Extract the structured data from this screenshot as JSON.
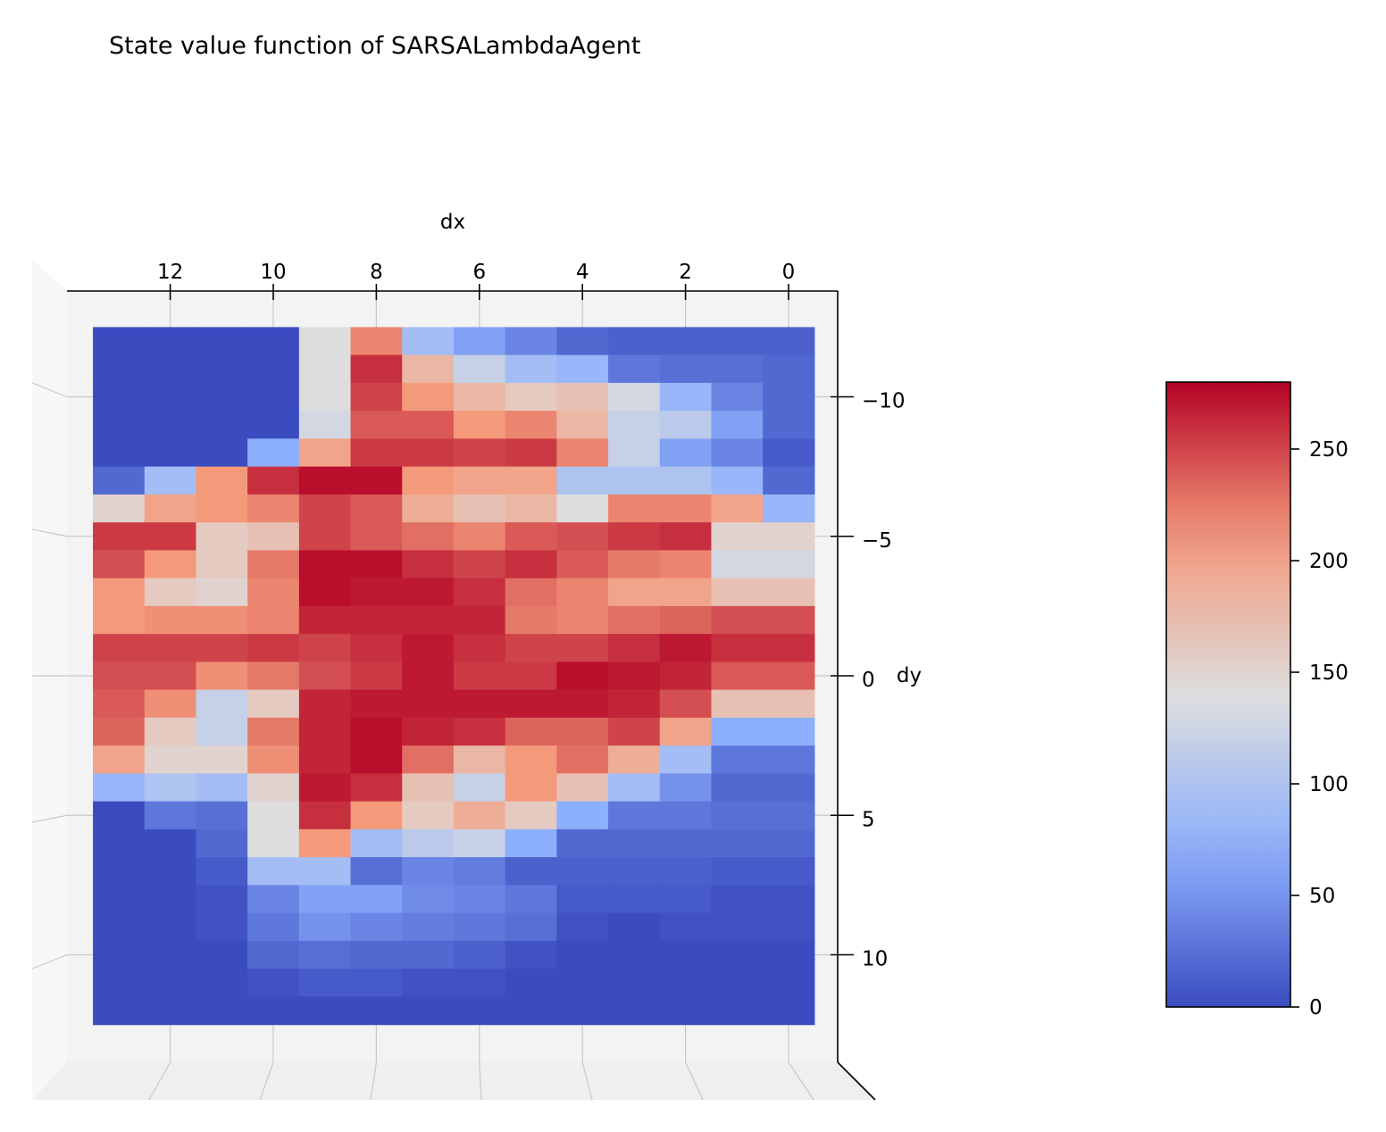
{
  "chart_data": {
    "type": "heatmap",
    "title": "State value function of SARSALambdaAgent",
    "xlabel": "dx",
    "ylabel": "dy",
    "x_axis_reversed": true,
    "xlim": [
      -1,
      14
    ],
    "ylim": [
      -14,
      14
    ],
    "x_ticks": [
      12,
      10,
      8,
      6,
      4,
      2,
      0
    ],
    "x_tick_labels": [
      "12",
      "10",
      "8",
      "6",
      "4",
      "2",
      "0"
    ],
    "y_ticks": [
      -10,
      -5,
      0,
      5,
      10
    ],
    "y_tick_labels": [
      "−10",
      "−5",
      "0",
      "5",
      "10"
    ],
    "colormap": "coolwarm",
    "colorbar": {
      "range": [
        0,
        280
      ],
      "ticks": [
        0,
        50,
        100,
        150,
        200,
        250
      ],
      "tick_labels": [
        "0",
        "50",
        "100",
        "150",
        "200",
        "250"
      ]
    },
    "x": [
      13,
      12,
      11,
      10,
      9,
      8,
      7,
      6,
      5,
      4,
      3,
      2,
      1,
      0
    ],
    "y": [
      -12,
      -11,
      -10,
      -9,
      -8,
      -7,
      -6,
      -5,
      -4,
      -3,
      -2,
      -1,
      0,
      1,
      2,
      3,
      4,
      5,
      6,
      7,
      8,
      9,
      10,
      11,
      12
    ],
    "grid": true,
    "values": [
      [
        0,
        0,
        0,
        0,
        140,
        220,
        90,
        60,
        40,
        20,
        15,
        15,
        15,
        15
      ],
      [
        0,
        0,
        0,
        0,
        140,
        260,
        180,
        120,
        90,
        80,
        30,
        25,
        25,
        20
      ],
      [
        0,
        0,
        0,
        0,
        140,
        250,
        210,
        180,
        160,
        170,
        130,
        80,
        40,
        20
      ],
      [
        0,
        0,
        0,
        0,
        130,
        240,
        240,
        210,
        220,
        180,
        120,
        110,
        60,
        20
      ],
      [
        0,
        0,
        0,
        70,
        200,
        255,
        255,
        250,
        255,
        220,
        120,
        60,
        40,
        10
      ],
      [
        20,
        90,
        210,
        260,
        275,
        275,
        210,
        200,
        200,
        100,
        100,
        100,
        80,
        20
      ],
      [
        150,
        200,
        210,
        220,
        250,
        240,
        190,
        170,
        180,
        140,
        220,
        220,
        200,
        80
      ],
      [
        255,
        255,
        160,
        170,
        250,
        240,
        230,
        220,
        240,
        245,
        255,
        260,
        150,
        150
      ],
      [
        245,
        210,
        160,
        225,
        275,
        275,
        260,
        250,
        260,
        240,
        225,
        220,
        130,
        130
      ],
      [
        210,
        160,
        150,
        220,
        275,
        270,
        270,
        260,
        230,
        220,
        200,
        200,
        170,
        170
      ],
      [
        210,
        215,
        215,
        220,
        265,
        265,
        265,
        265,
        225,
        220,
        230,
        235,
        245,
        245
      ],
      [
        250,
        250,
        250,
        255,
        250,
        260,
        270,
        260,
        250,
        250,
        260,
        270,
        260,
        260
      ],
      [
        245,
        245,
        215,
        225,
        245,
        255,
        270,
        255,
        255,
        275,
        270,
        265,
        240,
        240
      ],
      [
        240,
        215,
        120,
        160,
        265,
        270,
        270,
        270,
        270,
        270,
        265,
        245,
        170,
        170
      ],
      [
        235,
        160,
        120,
        225,
        265,
        275,
        265,
        260,
        235,
        235,
        250,
        200,
        70,
        70
      ],
      [
        200,
        150,
        150,
        215,
        265,
        275,
        230,
        180,
        210,
        230,
        190,
        90,
        30,
        30
      ],
      [
        80,
        100,
        90,
        150,
        270,
        260,
        170,
        120,
        210,
        170,
        90,
        50,
        20,
        20
      ],
      [
        0,
        30,
        25,
        140,
        260,
        210,
        160,
        190,
        160,
        70,
        30,
        30,
        25,
        25
      ],
      [
        0,
        0,
        20,
        140,
        210,
        90,
        110,
        120,
        70,
        20,
        20,
        20,
        20,
        20
      ],
      [
        0,
        0,
        10,
        90,
        90,
        25,
        40,
        35,
        15,
        15,
        15,
        15,
        10,
        10
      ],
      [
        0,
        0,
        5,
        40,
        60,
        60,
        45,
        40,
        30,
        10,
        10,
        10,
        5,
        5
      ],
      [
        0,
        0,
        5,
        30,
        50,
        40,
        35,
        30,
        25,
        5,
        0,
        5,
        5,
        5
      ],
      [
        0,
        0,
        0,
        20,
        25,
        20,
        20,
        15,
        5,
        0,
        0,
        0,
        0,
        0
      ],
      [
        0,
        0,
        0,
        5,
        10,
        10,
        5,
        5,
        0,
        0,
        0,
        0,
        0,
        0
      ],
      [
        0,
        0,
        0,
        0,
        0,
        0,
        0,
        0,
        0,
        0,
        0,
        0,
        0,
        0
      ]
    ]
  }
}
